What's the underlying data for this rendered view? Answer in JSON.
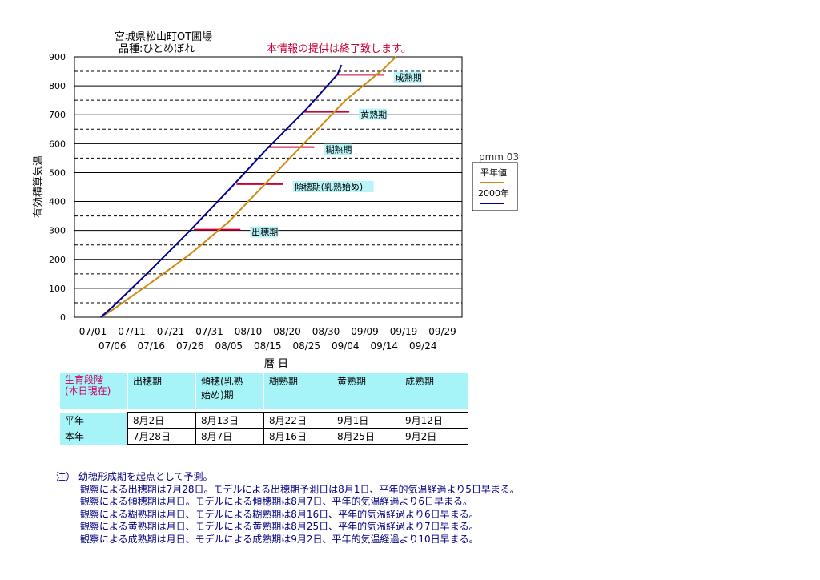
{
  "header": {
    "site": "宮城県松山町OT圃場",
    "variety": "品種:ひとめぼれ",
    "notice": "本情報の提供は終了致します。"
  },
  "legend": {
    "title": "pmm 03",
    "items": [
      {
        "label": "平年値",
        "color": "#d08a10"
      },
      {
        "label": "2000年",
        "color": "#000090"
      }
    ]
  },
  "chart_data": {
    "type": "line",
    "ylabel": "有効積算気温",
    "xlabel": "暦 日",
    "ylim": [
      0,
      900
    ],
    "yticks": [
      0,
      100,
      200,
      300,
      400,
      500,
      600,
      700,
      800,
      900
    ],
    "x_start": "07/01",
    "x_ticks_upper": [
      "07/01",
      "07/11",
      "07/21",
      "07/31",
      "08/10",
      "08/20",
      "08/30",
      "09/09",
      "09/19",
      "09/29"
    ],
    "x_ticks_lower": [
      "07/06",
      "07/16",
      "07/26",
      "08/05",
      "08/15",
      "08/25",
      "09/04",
      "09/14",
      "09/24"
    ],
    "grid": "horizontal",
    "series": [
      {
        "name": "平年値",
        "color": "#d08a10",
        "points": [
          [
            "07/03",
            0
          ],
          [
            "07/06",
            25
          ],
          [
            "07/16",
            120
          ],
          [
            "07/26",
            218
          ],
          [
            "08/05",
            330
          ],
          [
            "08/15",
            470
          ],
          [
            "08/25",
            610
          ],
          [
            "09/04",
            750
          ],
          [
            "09/14",
            860
          ],
          [
            "09/17",
            900
          ]
        ]
      },
      {
        "name": "2000年",
        "color": "#000090",
        "points": [
          [
            "07/03",
            0
          ],
          [
            "07/06",
            35
          ],
          [
            "07/16",
            165
          ],
          [
            "07/26",
            300
          ],
          [
            "08/05",
            440
          ],
          [
            "08/15",
            585
          ],
          [
            "08/25",
            720
          ],
          [
            "09/02",
            840
          ],
          [
            "09/03",
            872
          ]
        ]
      }
    ],
    "stage_markers": [
      {
        "label": "出穂期",
        "y": 303,
        "from": "07/27",
        "to": "08/08"
      },
      {
        "label": "傾穂期(乳熟始め)",
        "y": 460,
        "from": "08/07",
        "to": "08/19"
      },
      {
        "label": "糊熟期",
        "y": 588,
        "from": "08/15",
        "to": "08/27"
      },
      {
        "label": "黄熟期",
        "y": 710,
        "from": "08/24",
        "to": "09/05"
      },
      {
        "label": "成熟期",
        "y": 838,
        "from": "09/02",
        "to": "09/14"
      }
    ]
  },
  "stage_table": {
    "label_header": [
      "生育段階",
      "(本日現在)"
    ],
    "headers": [
      [
        "出穂期"
      ],
      [
        "傾穂(乳熟",
        "始め)期"
      ],
      [
        "糊熟期"
      ],
      [
        "黄熟期"
      ],
      [
        "成熟期"
      ]
    ],
    "rows": [
      {
        "label": "平年",
        "values": [
          "8月2日",
          "8月13日",
          "8月22日",
          "9月1日",
          "9月12日"
        ]
      },
      {
        "label": "本年",
        "values": [
          "7月28日",
          "8月7日",
          "8月16日",
          "8月25日",
          "9月2日"
        ]
      }
    ]
  },
  "notes": [
    "注） 幼穂形成期を起点として予測。",
    "観察による出穂期は7月28日。モデルによる出穂期予測日は8月1日、平年的気温経過より5日早まる。",
    "観察による傾穂期は月日。モデルによる傾穂期は8月7日、平年的気温経過より6日早まる。",
    "観察による糊熟期は月日、モデルによる糊熟期は8月16日、平年的気温経過より6日早まる。",
    "観察による黄熟期は月日、モデルによる黄熟期は8月25日、平年的気温経過より7日早まる。",
    "観察による成熟期は月日、モデルによる成熟期は9月2日、平年的気温経過より10日早まる。"
  ]
}
